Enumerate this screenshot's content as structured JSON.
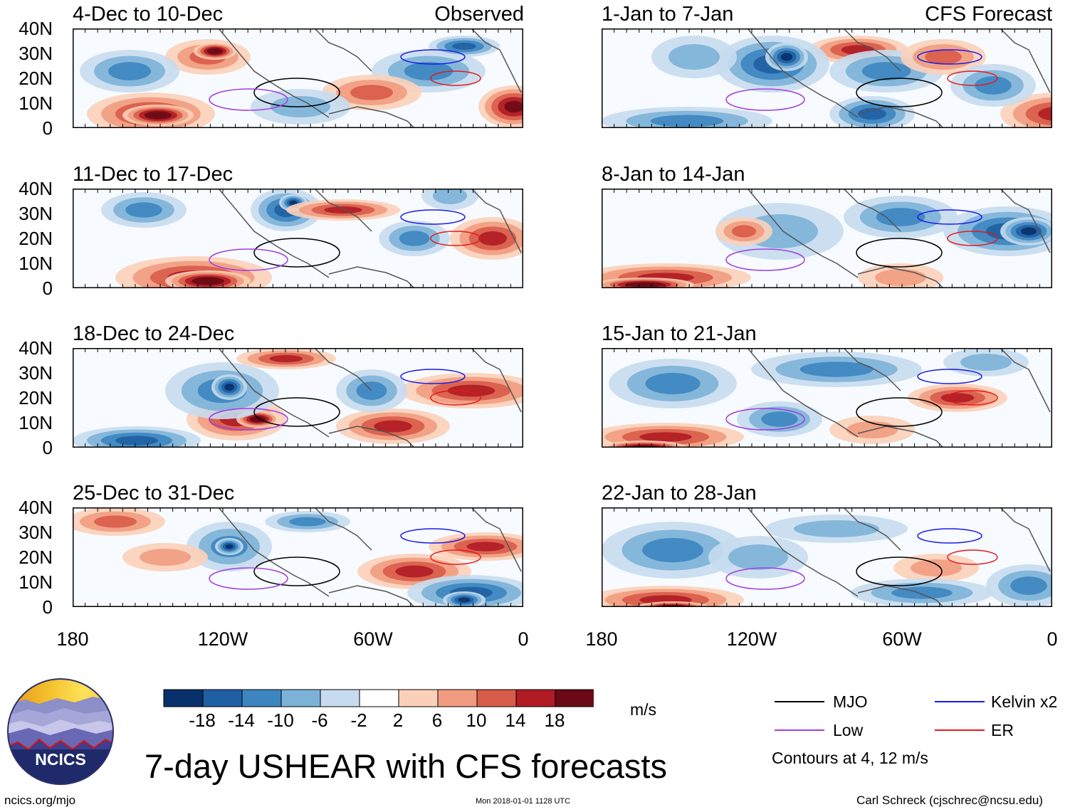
{
  "header": {
    "left_label": "Observed",
    "right_label": "CFS Forecast"
  },
  "panels": {
    "left": [
      {
        "title": "4-Dec to 10-Dec"
      },
      {
        "title": "11-Dec to 17-Dec"
      },
      {
        "title": "18-Dec to 24-Dec"
      },
      {
        "title": "25-Dec to 31-Dec"
      }
    ],
    "right": [
      {
        "title": "1-Jan to 7-Jan"
      },
      {
        "title": "8-Jan to 14-Jan"
      },
      {
        "title": "15-Jan to 21-Jan"
      },
      {
        "title": "22-Jan to 28-Jan"
      }
    ]
  },
  "axes": {
    "lat_labels": [
      "40N",
      "30N",
      "20N",
      "10N",
      "0"
    ],
    "lon_labels": [
      "180",
      "120W",
      "60W",
      "0"
    ]
  },
  "colorbar": {
    "unit": "m/s",
    "tick_labels": [
      "-18",
      "-14",
      "-10",
      "-6",
      "-2",
      "2",
      "6",
      "10",
      "14",
      "18"
    ],
    "colors": [
      "#08306b",
      "#1f5fa3",
      "#3d85c0",
      "#7db2d8",
      "#c6dcee",
      "#ffffff",
      "#fbd0b9",
      "#f19c80",
      "#d85c4a",
      "#b01b24",
      "#6b0a16"
    ]
  },
  "legend": {
    "items": [
      {
        "label": "MJO",
        "color": "#000000"
      },
      {
        "label": "Kelvin x2",
        "color": "#1a1ae6"
      },
      {
        "label": "Low",
        "color": "#a23ee0"
      },
      {
        "label": "ER",
        "color": "#e41a1a"
      }
    ],
    "note": "Contours at 4, 12 m/s"
  },
  "title": "7-day USHEAR with CFS forecasts",
  "footer": {
    "url": "ncics.org/mjo",
    "timestamp": "Mon 2018-01-01 1128 UTC",
    "credit": "Carl Schreck (cjschrec@ncsu.edu)",
    "logo_text": "NCICS"
  }
}
